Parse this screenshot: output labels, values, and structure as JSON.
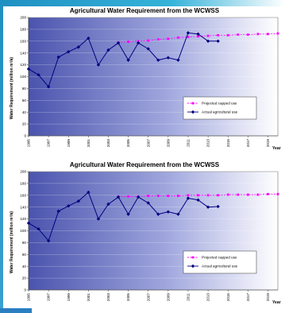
{
  "chart_data": [
    {
      "type": "line",
      "title": "Agricultural Water Requirement from the WCWSS",
      "ylabel": "Water Requirement (million m³/a)",
      "xlabel": "Year",
      "ylim": [
        0,
        200
      ],
      "yticks": [
        0,
        20,
        40,
        60,
        80,
        100,
        120,
        140,
        160,
        180,
        200
      ],
      "xticks": [
        1995,
        1997,
        1999,
        2001,
        2003,
        2005,
        2007,
        2009,
        2011,
        2013,
        2015,
        2017,
        2019
      ],
      "xlim": [
        1995,
        2020
      ],
      "grid": true,
      "legend_position": "right",
      "series": [
        {
          "name": "Projected capped use",
          "color": "#ff00ff",
          "marker": "square",
          "dashed": true,
          "x": [
            2004,
            2005,
            2006,
            2007,
            2008,
            2009,
            2010,
            2011,
            2012,
            2013,
            2014,
            2015,
            2016,
            2017,
            2018,
            2019,
            2020
          ],
          "y": [
            158,
            159,
            160,
            161,
            163,
            164,
            166,
            167,
            168,
            169,
            170,
            170,
            171,
            171,
            172,
            172,
            173
          ]
        },
        {
          "name": "Actual agricultural use",
          "color": "#000080",
          "marker": "diamond",
          "dashed": false,
          "x": [
            1995,
            1996,
            1997,
            1998,
            1999,
            2000,
            2001,
            2002,
            2003,
            2004,
            2005,
            2006,
            2007,
            2008,
            2009,
            2010,
            2011,
            2012,
            2013,
            2014
          ],
          "y": [
            113,
            103,
            83,
            133,
            142,
            150,
            165,
            120,
            145,
            157,
            128,
            157,
            147,
            128,
            132,
            128,
            174,
            172,
            160,
            160
          ]
        }
      ]
    },
    {
      "type": "line",
      "title": "Agricultural Water Requirement from the WCWSS",
      "ylabel": "Water Requirement (million m³/a)",
      "xlabel": "Year",
      "ylim": [
        0,
        200
      ],
      "yticks": [
        0,
        20,
        40,
        60,
        80,
        100,
        120,
        140,
        160,
        180,
        200
      ],
      "xticks": [
        1995,
        1997,
        1999,
        2001,
        2003,
        2005,
        2007,
        2009,
        2011,
        2013,
        2015,
        2017,
        2019
      ],
      "xlim": [
        1995,
        2020
      ],
      "grid": true,
      "legend_position": "right",
      "series": [
        {
          "name": "Projected capped use",
          "color": "#ff00ff",
          "marker": "square",
          "dashed": true,
          "x": [
            2004,
            2005,
            2006,
            2007,
            2008,
            2009,
            2010,
            2011,
            2012,
            2013,
            2014,
            2015,
            2016,
            2017,
            2018,
            2019,
            2020
          ],
          "y": [
            158,
            158,
            158,
            159,
            159,
            159,
            159,
            160,
            160,
            160,
            160,
            161,
            161,
            161,
            161,
            162,
            162
          ]
        },
        {
          "name": "Actual agricultural use",
          "color": "#000080",
          "marker": "diamond",
          "dashed": false,
          "x": [
            1995,
            1996,
            1997,
            1998,
            1999,
            2000,
            2001,
            2002,
            2003,
            2004,
            2005,
            2006,
            2007,
            2008,
            2009,
            2010,
            2011,
            2012,
            2013,
            2014
          ],
          "y": [
            113,
            103,
            83,
            133,
            142,
            150,
            165,
            120,
            145,
            157,
            128,
            157,
            147,
            128,
            132,
            128,
            155,
            152,
            140,
            141
          ]
        }
      ]
    }
  ]
}
